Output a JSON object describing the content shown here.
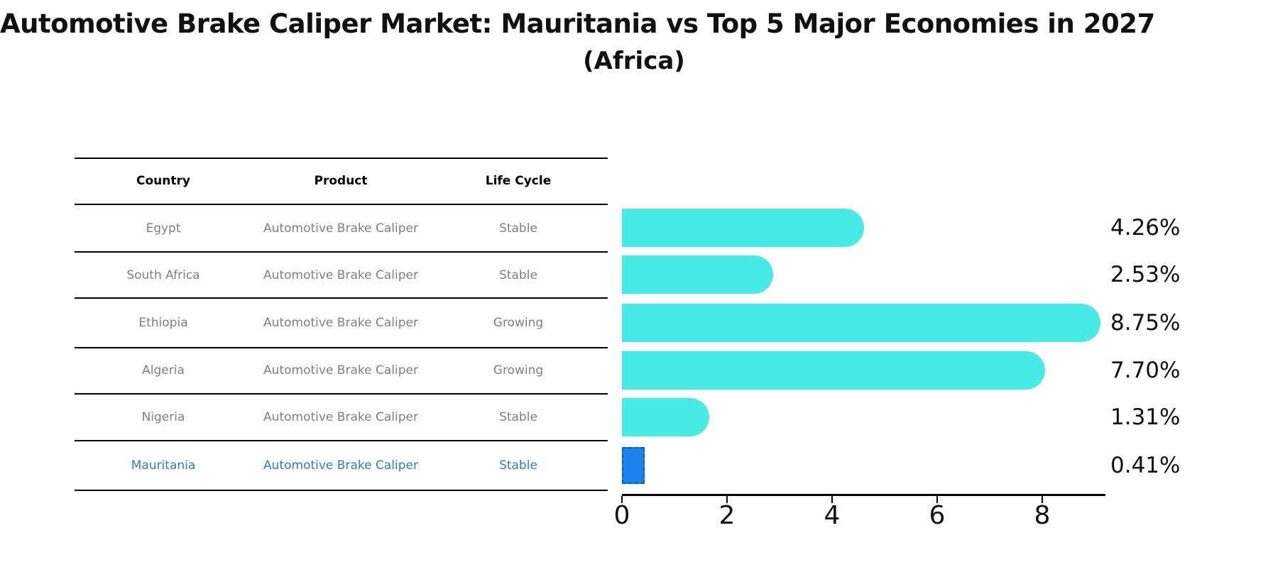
{
  "title": "Automotive Brake Caliper Market: Mauritania vs Top 5 Major Economies in 2027",
  "subtitle": "(Africa)",
  "table": {
    "headers": [
      "Country",
      "Product",
      "Life Cycle"
    ],
    "rows": [
      {
        "country": "Egypt",
        "product": "Automotive Brake Caliper",
        "life_cycle": "Stable"
      },
      {
        "country": "South Africa",
        "product": "Automotive Brake Caliper",
        "life_cycle": "Stable"
      },
      {
        "country": "Ethiopia",
        "product": "Automotive Brake Caliper",
        "life_cycle": "Growing"
      },
      {
        "country": "Algeria",
        "product": "Automotive Brake Caliper",
        "life_cycle": "Growing"
      },
      {
        "country": "Nigeria",
        "product": "Automotive Brake Caliper",
        "life_cycle": "Stable"
      },
      {
        "country": "Mauritania",
        "product": "Automotive Brake Caliper",
        "life_cycle": "Stable"
      }
    ],
    "highlight_row_index": 5,
    "row_text_color": "#7f7f7f",
    "highlight_text_color": "#2e7ec4"
  },
  "chart_data": {
    "type": "bar",
    "orientation": "horizontal",
    "categories": [
      "Egypt",
      "South Africa",
      "Ethiopia",
      "Algeria",
      "Nigeria",
      "Mauritania"
    ],
    "values": [
      4.26,
      2.53,
      8.75,
      7.7,
      1.31,
      0.41
    ],
    "value_labels": [
      "4.26%",
      "2.53%",
      "8.75%",
      "7.70%",
      "1.31%",
      "0.41%"
    ],
    "xticks": [
      "0",
      "2",
      "4",
      "6",
      "8"
    ],
    "xlim": [
      0,
      9.2
    ],
    "grid": false,
    "legend": false,
    "bar_color": "#47ebe6",
    "highlight_index": 5,
    "highlight_bar_color": "#1b82ec",
    "highlight_bar_border_color": "#0f5ec4"
  }
}
